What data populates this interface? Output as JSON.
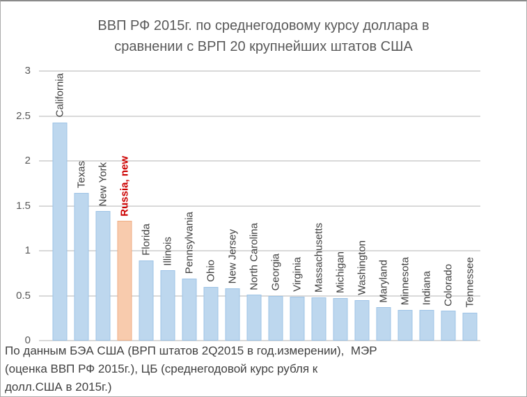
{
  "chart_data": {
    "type": "bar",
    "title": "ВВП РФ 2015г. по среднегодовому курсу доллара в сравнении с ВРП 20 крупнейших штатов США",
    "title_lines": [
      "ВВП РФ 2015г. по среднегодовому курсу доллара в",
      "сравнении с ВРП 20 крупнейших штатов США"
    ],
    "categories": [
      "California",
      "Texas",
      "New York",
      "Russia, new",
      "Florida",
      "Illinois",
      "Pennsylvania",
      "Ohio",
      "New Jersey",
      "North Carolina",
      "Georgia",
      "Virginia",
      "Massachusetts",
      "Michigan",
      "Washington",
      "Maryland",
      "Minnesota",
      "Indiana",
      "Colorado",
      "Tennessee"
    ],
    "values": [
      2.43,
      1.64,
      1.44,
      1.33,
      0.89,
      0.78,
      0.69,
      0.6,
      0.58,
      0.51,
      0.5,
      0.49,
      0.48,
      0.47,
      0.45,
      0.37,
      0.34,
      0.34,
      0.33,
      0.31
    ],
    "highlight_index": 3,
    "ylim": [
      0,
      3
    ],
    "yticks": [
      0,
      0.5,
      1,
      1.5,
      2,
      2.5,
      3
    ],
    "ytick_labels": [
      "0",
      "0.5",
      "1",
      "1.5",
      "2",
      "2.5",
      "3"
    ],
    "grid": true,
    "legend_position": "none",
    "xlabel": "",
    "ylabel": "",
    "source_note_lines": [
      "По данным БЭА США (ВРП штатов 2Q2015 в год.измерении),  МЭР",
      "(оценка ВВП РФ 2015г.), ЦБ (среднегодовой курс рубля к",
      "долл.США в 2015г.)"
    ],
    "colors": {
      "bar_fill": "#BDD7EE",
      "bar_border": "#9DC3E6",
      "highlight_fill": "#F8CBAD",
      "highlight_border": "#EFAE85",
      "highlight_label": "#CC0000",
      "label": "#3F3F3F",
      "axis_label": "#595959",
      "gridline": "#D9D9D9",
      "title": "#595959",
      "note": "#3F3F3F"
    }
  }
}
